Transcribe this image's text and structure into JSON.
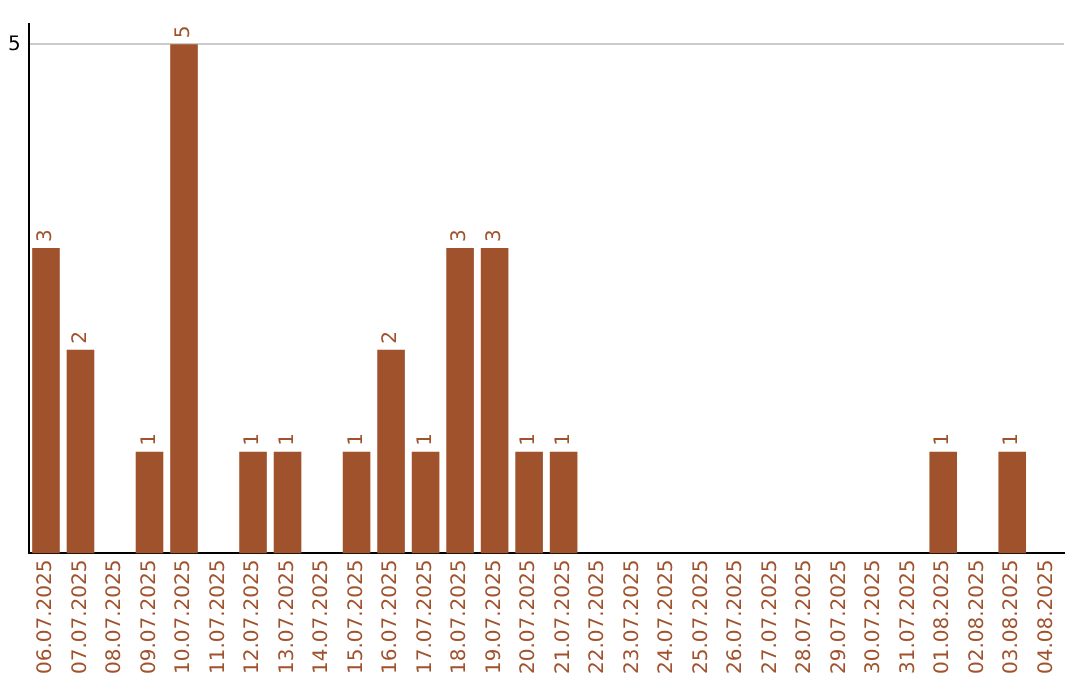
{
  "chart_data": {
    "type": "bar",
    "categories": [
      "06.07.2025",
      "07.07.2025",
      "08.07.2025",
      "09.07.2025",
      "10.07.2025",
      "11.07.2025",
      "12.07.2025",
      "13.07.2025",
      "14.07.2025",
      "15.07.2025",
      "16.07.2025",
      "17.07.2025",
      "18.07.2025",
      "19.07.2025",
      "20.07.2025",
      "21.07.2025",
      "22.07.2025",
      "23.07.2025",
      "24.07.2025",
      "25.07.2025",
      "26.07.2025",
      "27.07.2025",
      "28.07.2025",
      "29.07.2025",
      "30.07.2025",
      "31.07.2025",
      "01.08.2025",
      "02.08.2025",
      "03.08.2025",
      "04.08.2025"
    ],
    "values": [
      3,
      2,
      0,
      1,
      5,
      0,
      1,
      1,
      0,
      1,
      2,
      1,
      3,
      3,
      1,
      1,
      0,
      0,
      0,
      0,
      0,
      0,
      0,
      0,
      0,
      0,
      1,
      0,
      1,
      0
    ],
    "value_labels": [
      "3",
      "2",
      null,
      "1",
      "5",
      null,
      "1",
      "1",
      null,
      "1",
      "2",
      "1",
      "3",
      "3",
      "1",
      "1",
      null,
      null,
      null,
      null,
      null,
      null,
      null,
      null,
      null,
      null,
      "1",
      null,
      "1",
      null
    ],
    "color": "#a0522d",
    "ylim": [
      0,
      5.2
    ],
    "yticks": [
      5
    ],
    "grid": "y",
    "legend": false
  }
}
